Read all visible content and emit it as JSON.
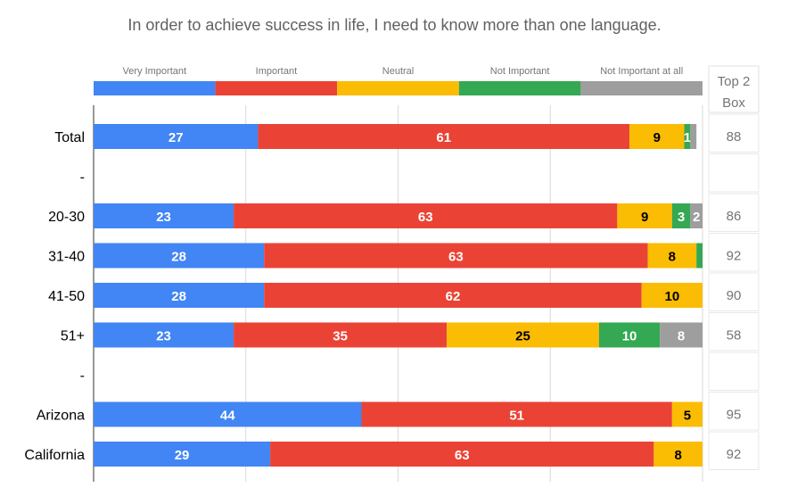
{
  "chart_data": {
    "type": "bar",
    "orientation": "horizontal",
    "stacked": true,
    "title": "In order to achieve success in life, I need to know more than one language.",
    "legend": [
      "Very Important",
      "Important",
      "Neutral",
      "Not Important",
      "Not Important at all"
    ],
    "legend_position": "top",
    "xlim": [
      0,
      100
    ],
    "categories": [
      "Total",
      "-",
      "20-30",
      "31-40",
      "41-50",
      "51+",
      "-",
      "Arizona",
      "California"
    ],
    "series": [
      {
        "name": "Very Important",
        "color": "#4285f4",
        "values": [
          27,
          null,
          23,
          28,
          28,
          23,
          null,
          44,
          29
        ]
      },
      {
        "name": "Important",
        "color": "#ea4335",
        "values": [
          61,
          null,
          63,
          63,
          62,
          35,
          null,
          51,
          63
        ]
      },
      {
        "name": "Neutral",
        "color": "#fbbc04",
        "values": [
          9,
          null,
          9,
          8,
          10,
          25,
          null,
          5,
          8
        ]
      },
      {
        "name": "Not Important",
        "color": "#34a853",
        "values": [
          1,
          null,
          3,
          1,
          0,
          10,
          null,
          0,
          0
        ]
      },
      {
        "name": "Not Important at all",
        "color": "#9e9e9e",
        "values": [
          1,
          null,
          2,
          0,
          0,
          8,
          null,
          0,
          0
        ]
      }
    ],
    "data_labels": [
      [
        "27",
        "61",
        "9",
        "1",
        ""
      ],
      [
        "",
        "",
        "",
        "",
        ""
      ],
      [
        "23",
        "63",
        "9",
        "3",
        "2"
      ],
      [
        "28",
        "63",
        "8",
        "",
        ""
      ],
      [
        "28",
        "62",
        "10",
        "",
        ""
      ],
      [
        "23",
        "35",
        "25",
        "10",
        "8"
      ],
      [
        "",
        "",
        "",
        "",
        ""
      ],
      [
        "44",
        "51",
        "5",
        "",
        ""
      ],
      [
        "29",
        "63",
        "8",
        "",
        ""
      ]
    ],
    "label_colors": [
      "#ffffff",
      "#ffffff",
      "#000000",
      "#ffffff",
      "#ffffff"
    ],
    "top2box": {
      "header": [
        "Top 2",
        "Box"
      ],
      "values": [
        "88",
        "",
        "86",
        "92",
        "90",
        "58",
        "",
        "95",
        "92"
      ]
    }
  }
}
